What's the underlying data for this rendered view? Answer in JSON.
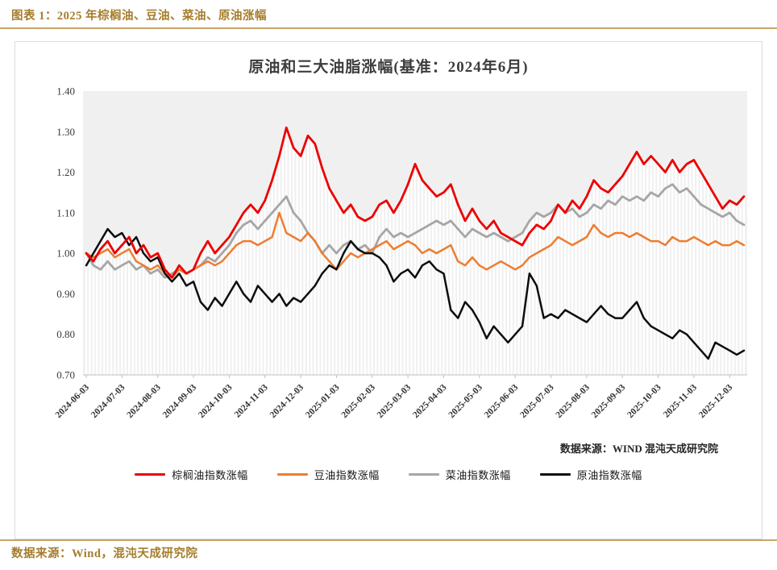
{
  "theme": {
    "accent_line": "#c9a368",
    "header_text": "#a57d2b",
    "chart_title_color": "#3d3d3d",
    "plot_background": "#f0f0f0",
    "stripe_color": "#ffffff",
    "axis_line_color": "#bfbfbf",
    "axis_text_color": "#3a3a3a"
  },
  "header": {
    "title": "图表 1：2025 年棕榈油、豆油、菜油、原油涨幅"
  },
  "footer": {
    "source": "数据来源：Wind，混沌天成研究院"
  },
  "chart": {
    "title": "原油和三大油脂涨幅(基准：2024年6月)",
    "source_note": "数据来源：WIND 混沌天成研究院"
  },
  "chart_data": {
    "type": "line",
    "title": "原油和三大油脂涨幅(基准：2024年6月)",
    "ylim": [
      0.7,
      1.4
    ],
    "y_ticks": [
      0.7,
      0.8,
      0.9,
      1.0,
      1.1,
      1.2,
      1.3,
      1.4
    ],
    "grid": "vertical-stripes",
    "legend_position": "bottom",
    "ticks_every_n_points": 5,
    "x_tick_labels": [
      "2024-06-03",
      "2024-07-03",
      "2024-08-03",
      "2024-09-03",
      "2024-10-03",
      "2024-11-03",
      "2024-12-03",
      "2025-01-03",
      "2025-02-03",
      "2025-03-03",
      "2025-04-03",
      "2025-05-03",
      "2025-06-03",
      "2025-07-03",
      "2025-08-03",
      "2025-09-03",
      "2025-10-03",
      "2025-11-03",
      "2025-12-03"
    ],
    "series": [
      {
        "name": "棕榈油指数涨幅",
        "color": "#ec0000",
        "width": 2.8,
        "values": [
          1.0,
          0.98,
          1.01,
          1.03,
          1.0,
          1.02,
          1.04,
          1.0,
          1.02,
          0.99,
          1.0,
          0.96,
          0.94,
          0.97,
          0.95,
          0.96,
          1.0,
          1.03,
          1.0,
          1.02,
          1.04,
          1.07,
          1.1,
          1.12,
          1.1,
          1.13,
          1.18,
          1.24,
          1.31,
          1.26,
          1.24,
          1.29,
          1.27,
          1.21,
          1.16,
          1.13,
          1.1,
          1.12,
          1.09,
          1.08,
          1.09,
          1.12,
          1.13,
          1.1,
          1.13,
          1.17,
          1.22,
          1.18,
          1.16,
          1.14,
          1.15,
          1.17,
          1.12,
          1.08,
          1.11,
          1.08,
          1.06,
          1.08,
          1.05,
          1.04,
          1.03,
          1.02,
          1.05,
          1.07,
          1.06,
          1.08,
          1.12,
          1.1,
          1.13,
          1.11,
          1.14,
          1.18,
          1.16,
          1.15,
          1.17,
          1.19,
          1.22,
          1.25,
          1.22,
          1.24,
          1.22,
          1.2,
          1.23,
          1.2,
          1.22,
          1.23,
          1.2,
          1.17,
          1.14,
          1.11,
          1.13,
          1.12,
          1.14
        ]
      },
      {
        "name": "豆油指数涨幅",
        "color": "#ed7d31",
        "width": 2.5,
        "values": [
          1.0,
          0.99,
          1.0,
          1.01,
          0.99,
          1.0,
          1.01,
          0.98,
          0.97,
          0.96,
          0.97,
          0.95,
          0.94,
          0.96,
          0.95,
          0.96,
          0.97,
          0.98,
          0.97,
          0.98,
          1.0,
          1.02,
          1.03,
          1.03,
          1.02,
          1.03,
          1.04,
          1.1,
          1.05,
          1.04,
          1.03,
          1.05,
          1.03,
          1.0,
          0.98,
          0.96,
          0.98,
          1.0,
          0.99,
          1.0,
          1.01,
          1.02,
          1.03,
          1.01,
          1.02,
          1.03,
          1.02,
          1.0,
          1.01,
          1.0,
          1.01,
          1.02,
          0.98,
          0.97,
          0.99,
          0.97,
          0.96,
          0.97,
          0.98,
          0.97,
          0.96,
          0.97,
          0.99,
          1.0,
          1.01,
          1.02,
          1.04,
          1.03,
          1.02,
          1.03,
          1.04,
          1.07,
          1.05,
          1.04,
          1.05,
          1.05,
          1.04,
          1.05,
          1.04,
          1.03,
          1.03,
          1.02,
          1.04,
          1.03,
          1.03,
          1.04,
          1.03,
          1.02,
          1.03,
          1.02,
          1.02,
          1.03,
          1.02
        ]
      },
      {
        "name": "菜油指数涨幅",
        "color": "#a6a6a6",
        "width": 2.8,
        "values": [
          1.0,
          0.97,
          0.96,
          0.98,
          0.96,
          0.97,
          0.98,
          0.96,
          0.97,
          0.95,
          0.96,
          0.94,
          0.95,
          0.96,
          0.95,
          0.96,
          0.97,
          0.99,
          0.98,
          1.0,
          1.02,
          1.05,
          1.07,
          1.08,
          1.06,
          1.08,
          1.1,
          1.12,
          1.14,
          1.1,
          1.08,
          1.05,
          1.03,
          1.0,
          1.02,
          1.0,
          1.02,
          1.03,
          1.01,
          1.02,
          1.0,
          1.04,
          1.06,
          1.04,
          1.05,
          1.04,
          1.05,
          1.06,
          1.07,
          1.08,
          1.07,
          1.08,
          1.06,
          1.04,
          1.06,
          1.05,
          1.04,
          1.05,
          1.04,
          1.03,
          1.04,
          1.05,
          1.08,
          1.1,
          1.09,
          1.1,
          1.12,
          1.1,
          1.11,
          1.09,
          1.1,
          1.12,
          1.11,
          1.13,
          1.12,
          1.14,
          1.13,
          1.14,
          1.13,
          1.15,
          1.14,
          1.16,
          1.17,
          1.15,
          1.16,
          1.14,
          1.12,
          1.11,
          1.1,
          1.09,
          1.1,
          1.08,
          1.07
        ]
      },
      {
        "name": "原油指数涨幅",
        "color": "#0d0d0d",
        "width": 2.5,
        "values": [
          0.97,
          1.0,
          1.03,
          1.06,
          1.04,
          1.05,
          1.02,
          1.04,
          1.0,
          0.98,
          0.99,
          0.95,
          0.93,
          0.95,
          0.92,
          0.93,
          0.88,
          0.86,
          0.89,
          0.87,
          0.9,
          0.93,
          0.9,
          0.88,
          0.92,
          0.9,
          0.88,
          0.9,
          0.87,
          0.89,
          0.88,
          0.9,
          0.92,
          0.95,
          0.97,
          0.96,
          1.0,
          1.03,
          1.01,
          1.0,
          1.0,
          0.99,
          0.97,
          0.93,
          0.95,
          0.96,
          0.94,
          0.97,
          0.98,
          0.96,
          0.95,
          0.86,
          0.84,
          0.88,
          0.86,
          0.83,
          0.79,
          0.82,
          0.8,
          0.78,
          0.8,
          0.82,
          0.95,
          0.92,
          0.84,
          0.85,
          0.84,
          0.86,
          0.85,
          0.84,
          0.83,
          0.85,
          0.87,
          0.85,
          0.84,
          0.84,
          0.86,
          0.88,
          0.84,
          0.82,
          0.81,
          0.8,
          0.79,
          0.81,
          0.8,
          0.78,
          0.76,
          0.74,
          0.78,
          0.77,
          0.76,
          0.75,
          0.76
        ]
      }
    ],
    "draw_order": [
      2,
      1,
      3,
      0
    ]
  }
}
